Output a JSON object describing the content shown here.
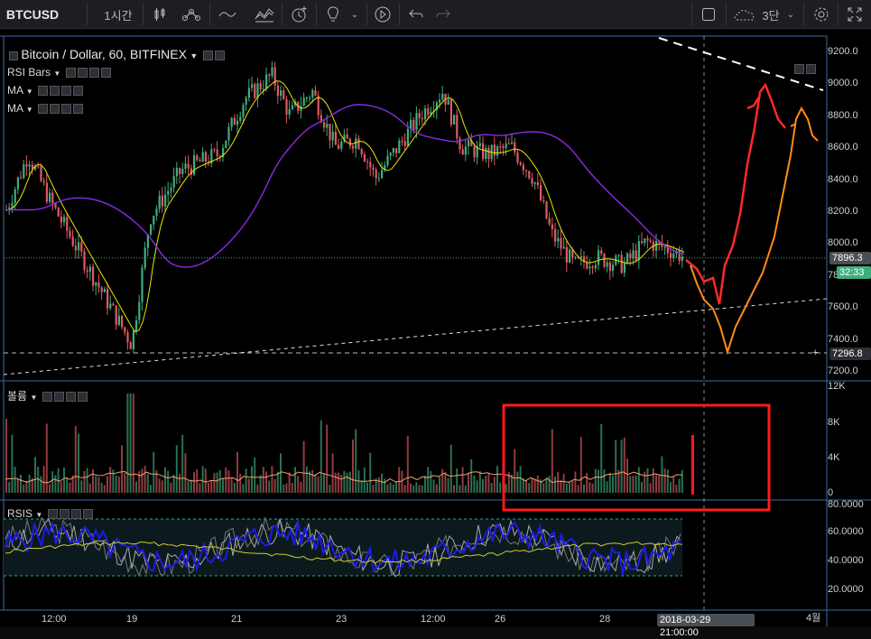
{
  "toolbar": {
    "symbol": "BTCUSD",
    "interval": "1시간",
    "range": "3단",
    "icons": [
      "candles-icon",
      "indicators-icon",
      "drawing-icon",
      "templates-icon",
      "alert-icon",
      "idea-icon",
      "replay-icon",
      "undo-icon",
      "redo-icon",
      "fullscreen-icon",
      "cloud-icon",
      "settings-icon",
      "expand-icon"
    ]
  },
  "main": {
    "title": "Bitcoin / Dollar, 60, BITFINEX",
    "indicators": [
      "RSI Bars",
      "MA",
      "MA"
    ],
    "price_axis": [
      "9200.0",
      "9000.0",
      "8800.0",
      "8600.0",
      "8400.0",
      "8200.0",
      "8000.0",
      "7800.0",
      "7600.0",
      "7400.0",
      "7200.0"
    ],
    "last_price": "7896.3",
    "countdown": "32:33",
    "level_price": "7296.8"
  },
  "volume": {
    "label": "볼륨",
    "axis": [
      "12K",
      "8K",
      "4K",
      "0"
    ]
  },
  "rsi": {
    "label": "RSIS",
    "axis": [
      "80.0000",
      "60.0000",
      "40.0000",
      "20.0000"
    ]
  },
  "time_axis": {
    "ticks": [
      "12:00",
      "19",
      "21",
      "23",
      "12:00",
      "26",
      "28",
      "4월"
    ],
    "crosshair_label": "2018-03-29 21:00:00"
  },
  "colors": {
    "up": "#3fae7f",
    "down": "#e05a61",
    "ma_fast": "#e6e600",
    "ma_slow": "#8a2be2",
    "projection_red": "#ff2a2a",
    "projection_orange": "#ff8c1a",
    "rsi": "#1c1ce6",
    "highlight_box": "#ff1a1a"
  }
}
